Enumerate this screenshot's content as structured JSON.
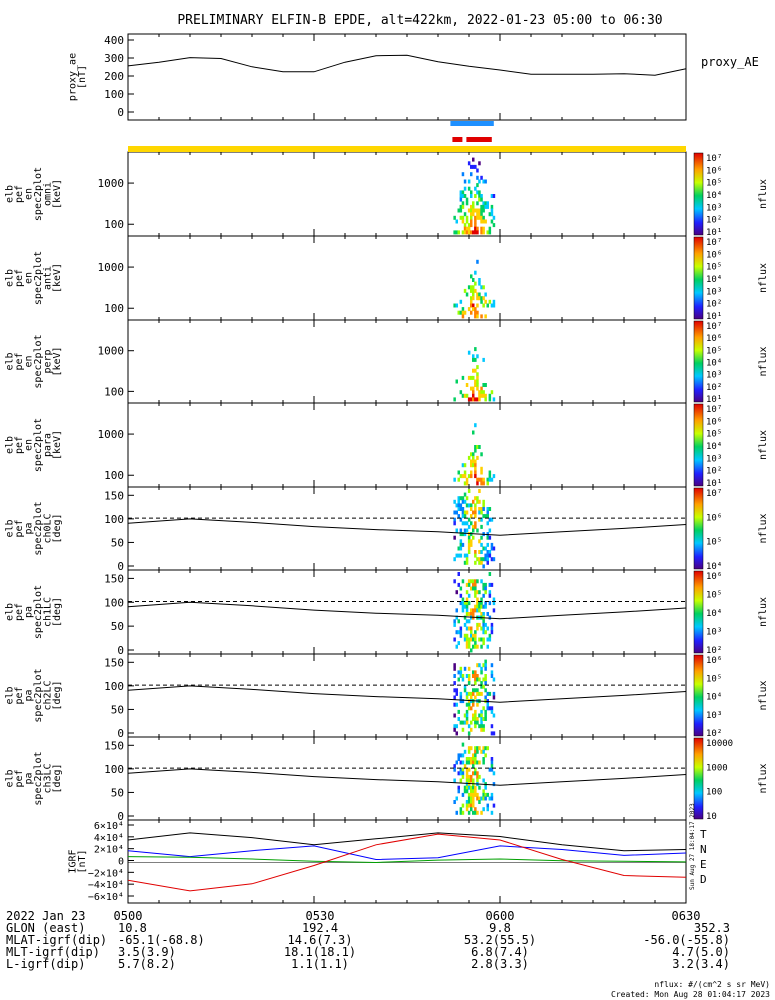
{
  "title": "PRELIMINARY ELFIN-B EPDE, alt=422km, 2022-01-23 05:00 to 06:30",
  "time_axis": {
    "start": "2022-01-23 05:00",
    "end": "2022-01-23 06:30",
    "ticks": [
      "0500",
      "0530",
      "0600",
      "0630"
    ]
  },
  "colors": {
    "science_bar": "#1e90ff",
    "science_bar_2": "#e00000",
    "orbit_bar": "#ffd700",
    "T": "#000000",
    "N": "#0000ff",
    "E": "#00a000",
    "D": "#e00000"
  },
  "panels": [
    {
      "id": "proxy-ae",
      "ylabel_lines": [
        "proxy_ae",
        "[nT]"
      ],
      "right_label": "proxy_AE",
      "yticks": [
        "400",
        "300",
        "200",
        "100",
        "0"
      ]
    },
    {
      "id": "en-omni",
      "ylabel_lines": [
        "elb",
        "pef",
        "en",
        "spec2plot",
        "omni",
        "[keV]"
      ],
      "yticks": [
        "1000",
        "100"
      ],
      "colorbar_label": "nflux"
    },
    {
      "id": "en-anti",
      "ylabel_lines": [
        "elb",
        "pef",
        "en",
        "spec2plot",
        "anti",
        "[keV]"
      ],
      "yticks": [
        "1000",
        "100"
      ],
      "colorbar_label": "nflux"
    },
    {
      "id": "en-perp",
      "ylabel_lines": [
        "elb",
        "pef",
        "en",
        "spec2plot",
        "perp",
        "[keV]"
      ],
      "yticks": [
        "1000",
        "100"
      ],
      "colorbar_label": "nflux"
    },
    {
      "id": "en-para",
      "ylabel_lines": [
        "elb",
        "pef",
        "en",
        "spec2plot",
        "para",
        "[keV]"
      ],
      "yticks": [
        "1000",
        "100"
      ],
      "colorbar_label": "nflux"
    },
    {
      "id": "pa-ch0",
      "ylabel_lines": [
        "elb",
        "pef",
        "pa",
        "spec2plot",
        "ch0LC",
        "[deg]"
      ],
      "yticks": [
        "150",
        "100",
        "50",
        "0"
      ],
      "colorbar_label": "nflux"
    },
    {
      "id": "pa-ch1",
      "ylabel_lines": [
        "elb",
        "pef",
        "pa",
        "spec2plot",
        "ch1LC",
        "[deg]"
      ],
      "yticks": [
        "150",
        "100",
        "50",
        "0"
      ],
      "colorbar_label": "nflux"
    },
    {
      "id": "pa-ch2",
      "ylabel_lines": [
        "elb",
        "pef",
        "pa",
        "spec2plot",
        "ch2LC",
        "[deg]"
      ],
      "yticks": [
        "150",
        "100",
        "50",
        "0"
      ],
      "colorbar_label": "nflux"
    },
    {
      "id": "pa-ch3",
      "ylabel_lines": [
        "elb",
        "pef",
        "pa",
        "spec2plot",
        "ch3LC",
        "[deg]"
      ],
      "yticks": [
        "150",
        "100",
        "50",
        "0"
      ],
      "colorbar_label": "nflux"
    },
    {
      "id": "igrf",
      "ylabel_lines": [
        "IGRF",
        "[nT]"
      ],
      "yticks": [
        "6×10⁴",
        "4×10⁴",
        "2×10⁴",
        "0",
        "−2×10⁴",
        "−4×10⁴",
        "−6×10⁴"
      ]
    }
  ],
  "colorbars": [
    {
      "ticks": [
        "10⁷",
        "10⁶",
        "10⁵",
        "10⁴",
        "10³",
        "10²",
        "10¹"
      ]
    },
    {
      "ticks": [
        "10⁷",
        "10⁶",
        "10⁵",
        "10⁴",
        "10³",
        "10²",
        "10¹"
      ]
    },
    {
      "ticks": [
        "10⁷",
        "10⁶",
        "10⁵",
        "10⁴",
        "10³",
        "10²",
        "10¹"
      ]
    },
    {
      "ticks": [
        "10⁷",
        "10⁶",
        "10⁵",
        "10⁴",
        "10³",
        "10²",
        "10¹"
      ]
    },
    {
      "ticks": [
        "10⁷",
        "10⁶",
        "10⁵",
        "10⁴"
      ]
    },
    {
      "ticks": [
        "10⁶",
        "10⁵",
        "10⁴",
        "10³",
        "10²"
      ]
    },
    {
      "ticks": [
        "10⁶",
        "10⁵",
        "10⁴",
        "10³",
        "10²"
      ]
    },
    {
      "ticks": [
        "10000",
        "1000",
        "100",
        "10"
      ]
    }
  ],
  "igrf_legend": [
    "T",
    "N",
    "E",
    "D"
  ],
  "igrf_sidebar": "Sun Aug 27 18:04:17 2023",
  "ephemeris": {
    "date_label": "2022 Jan 23",
    "rows": [
      {
        "label": "GLON (east)",
        "values": [
          "10.8",
          "192.4",
          "9.8",
          "352.3"
        ]
      },
      {
        "label": "MLAT-igrf(dip)",
        "values": [
          "-65.1(-68.8)",
          "14.6(7.3)",
          "53.2(55.5)",
          "-56.0(-55.8)"
        ]
      },
      {
        "label": "MLT-igrf(dip)",
        "values": [
          "3.5(3.9)",
          "18.1(18.1)",
          "6.8(7.4)",
          "4.7(5.0)"
        ]
      },
      {
        "label": "L-igrf(dip)",
        "values": [
          "5.7(8.2)",
          "1.1(1.1)",
          "2.8(3.3)",
          "3.2(3.4)"
        ]
      }
    ]
  },
  "footer": {
    "units": "nflux: #/(cm^2 s sr MeV)",
    "created": "Created: Mon Aug 28 01:04:17 2023"
  },
  "chart_data": {
    "type": "heatmap",
    "title": "PRELIMINARY ELFIN-B EPDE, alt=422km, 2022-01-23 05:00 to 06:30",
    "x_range": [
      "05:00",
      "06:30"
    ],
    "proxy_ae": {
      "ylim": [
        0,
        400
      ],
      "x": [
        "05:00",
        "05:05",
        "05:10",
        "05:15",
        "05:20",
        "05:25",
        "05:30",
        "05:35",
        "05:40",
        "05:45",
        "05:50",
        "05:55",
        "06:00",
        "06:05",
        "06:10",
        "06:15",
        "06:20",
        "06:25",
        "06:30"
      ],
      "values": [
        260,
        280,
        305,
        300,
        255,
        228,
        228,
        280,
        315,
        318,
        282,
        258,
        238,
        215,
        215,
        215,
        218,
        210,
        245
      ]
    },
    "science_zone": [
      "05:52",
      "05:59"
    ],
    "energy_ylim_keV": [
      60,
      6000
    ],
    "pitch_angle_ylim_deg": [
      0,
      180
    ],
    "loss_cone_deg": {
      "x": [
        "05:00",
        "05:10",
        "05:20",
        "05:30",
        "05:40",
        "05:50",
        "06:00",
        "06:10",
        "06:20",
        "06:30"
      ],
      "solid": [
        100,
        110,
        102,
        92,
        85,
        80,
        72,
        80,
        88,
        97
      ],
      "dashed": [
        112,
        112,
        112,
        112,
        112,
        112,
        112,
        112,
        112,
        112
      ]
    },
    "igrf": {
      "ylim": [
        -60000,
        60000
      ],
      "x": [
        "05:00",
        "05:10",
        "05:20",
        "05:30",
        "05:40",
        "05:50",
        "06:00",
        "06:10",
        "06:20",
        "06:30"
      ],
      "series": [
        {
          "name": "T",
          "values": [
            38000,
            50000,
            42000,
            30000,
            40000,
            50000,
            44000,
            30000,
            20000,
            22000
          ]
        },
        {
          "name": "N",
          "values": [
            20000,
            10000,
            20000,
            28000,
            5000,
            8000,
            28000,
            22000,
            12000,
            16000
          ]
        },
        {
          "name": "E",
          "values": [
            10000,
            9000,
            6000,
            2000,
            0,
            4000,
            6000,
            3000,
            2000,
            1000
          ]
        },
        {
          "name": "D",
          "values": [
            -30000,
            -48000,
            -36000,
            -5000,
            30000,
            48000,
            38000,
            5000,
            -22000,
            -25000
          ]
        }
      ]
    }
  }
}
